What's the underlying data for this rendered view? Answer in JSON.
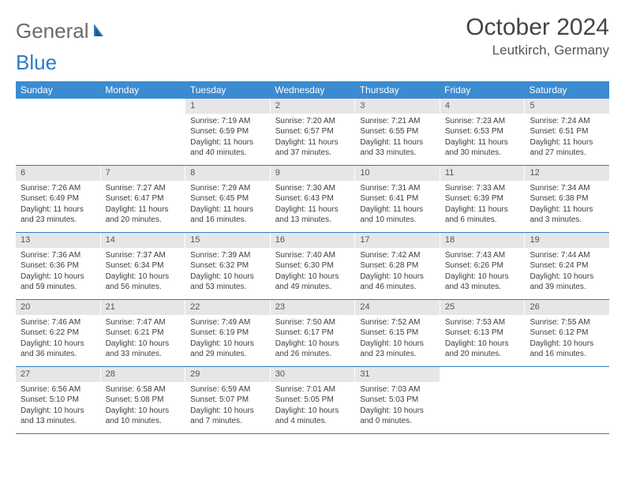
{
  "logo": {
    "text1": "General",
    "text2": "Blue"
  },
  "title": "October 2024",
  "location": "Leutkirch, Germany",
  "colors": {
    "header_bg": "#3b8bd0",
    "header_text": "#ffffff",
    "daynum_bg": "#e6e6e6",
    "border": "#2f7bc4",
    "logo_gray": "#6b6b6b",
    "logo_blue": "#2f7bc4"
  },
  "weekdays": [
    "Sunday",
    "Monday",
    "Tuesday",
    "Wednesday",
    "Thursday",
    "Friday",
    "Saturday"
  ],
  "weeks": [
    [
      null,
      null,
      {
        "n": "1",
        "sr": "7:19 AM",
        "ss": "6:59 PM",
        "dl": "11 hours and 40 minutes."
      },
      {
        "n": "2",
        "sr": "7:20 AM",
        "ss": "6:57 PM",
        "dl": "11 hours and 37 minutes."
      },
      {
        "n": "3",
        "sr": "7:21 AM",
        "ss": "6:55 PM",
        "dl": "11 hours and 33 minutes."
      },
      {
        "n": "4",
        "sr": "7:23 AM",
        "ss": "6:53 PM",
        "dl": "11 hours and 30 minutes."
      },
      {
        "n": "5",
        "sr": "7:24 AM",
        "ss": "6:51 PM",
        "dl": "11 hours and 27 minutes."
      }
    ],
    [
      {
        "n": "6",
        "sr": "7:26 AM",
        "ss": "6:49 PM",
        "dl": "11 hours and 23 minutes."
      },
      {
        "n": "7",
        "sr": "7:27 AM",
        "ss": "6:47 PM",
        "dl": "11 hours and 20 minutes."
      },
      {
        "n": "8",
        "sr": "7:29 AM",
        "ss": "6:45 PM",
        "dl": "11 hours and 16 minutes."
      },
      {
        "n": "9",
        "sr": "7:30 AM",
        "ss": "6:43 PM",
        "dl": "11 hours and 13 minutes."
      },
      {
        "n": "10",
        "sr": "7:31 AM",
        "ss": "6:41 PM",
        "dl": "11 hours and 10 minutes."
      },
      {
        "n": "11",
        "sr": "7:33 AM",
        "ss": "6:39 PM",
        "dl": "11 hours and 6 minutes."
      },
      {
        "n": "12",
        "sr": "7:34 AM",
        "ss": "6:38 PM",
        "dl": "11 hours and 3 minutes."
      }
    ],
    [
      {
        "n": "13",
        "sr": "7:36 AM",
        "ss": "6:36 PM",
        "dl": "10 hours and 59 minutes."
      },
      {
        "n": "14",
        "sr": "7:37 AM",
        "ss": "6:34 PM",
        "dl": "10 hours and 56 minutes."
      },
      {
        "n": "15",
        "sr": "7:39 AM",
        "ss": "6:32 PM",
        "dl": "10 hours and 53 minutes."
      },
      {
        "n": "16",
        "sr": "7:40 AM",
        "ss": "6:30 PM",
        "dl": "10 hours and 49 minutes."
      },
      {
        "n": "17",
        "sr": "7:42 AM",
        "ss": "6:28 PM",
        "dl": "10 hours and 46 minutes."
      },
      {
        "n": "18",
        "sr": "7:43 AM",
        "ss": "6:26 PM",
        "dl": "10 hours and 43 minutes."
      },
      {
        "n": "19",
        "sr": "7:44 AM",
        "ss": "6:24 PM",
        "dl": "10 hours and 39 minutes."
      }
    ],
    [
      {
        "n": "20",
        "sr": "7:46 AM",
        "ss": "6:22 PM",
        "dl": "10 hours and 36 minutes."
      },
      {
        "n": "21",
        "sr": "7:47 AM",
        "ss": "6:21 PM",
        "dl": "10 hours and 33 minutes."
      },
      {
        "n": "22",
        "sr": "7:49 AM",
        "ss": "6:19 PM",
        "dl": "10 hours and 29 minutes."
      },
      {
        "n": "23",
        "sr": "7:50 AM",
        "ss": "6:17 PM",
        "dl": "10 hours and 26 minutes."
      },
      {
        "n": "24",
        "sr": "7:52 AM",
        "ss": "6:15 PM",
        "dl": "10 hours and 23 minutes."
      },
      {
        "n": "25",
        "sr": "7:53 AM",
        "ss": "6:13 PM",
        "dl": "10 hours and 20 minutes."
      },
      {
        "n": "26",
        "sr": "7:55 AM",
        "ss": "6:12 PM",
        "dl": "10 hours and 16 minutes."
      }
    ],
    [
      {
        "n": "27",
        "sr": "6:56 AM",
        "ss": "5:10 PM",
        "dl": "10 hours and 13 minutes."
      },
      {
        "n": "28",
        "sr": "6:58 AM",
        "ss": "5:08 PM",
        "dl": "10 hours and 10 minutes."
      },
      {
        "n": "29",
        "sr": "6:59 AM",
        "ss": "5:07 PM",
        "dl": "10 hours and 7 minutes."
      },
      {
        "n": "30",
        "sr": "7:01 AM",
        "ss": "5:05 PM",
        "dl": "10 hours and 4 minutes."
      },
      {
        "n": "31",
        "sr": "7:03 AM",
        "ss": "5:03 PM",
        "dl": "10 hours and 0 minutes."
      },
      null,
      null
    ]
  ],
  "labels": {
    "sunrise": "Sunrise:",
    "sunset": "Sunset:",
    "daylight": "Daylight:"
  }
}
